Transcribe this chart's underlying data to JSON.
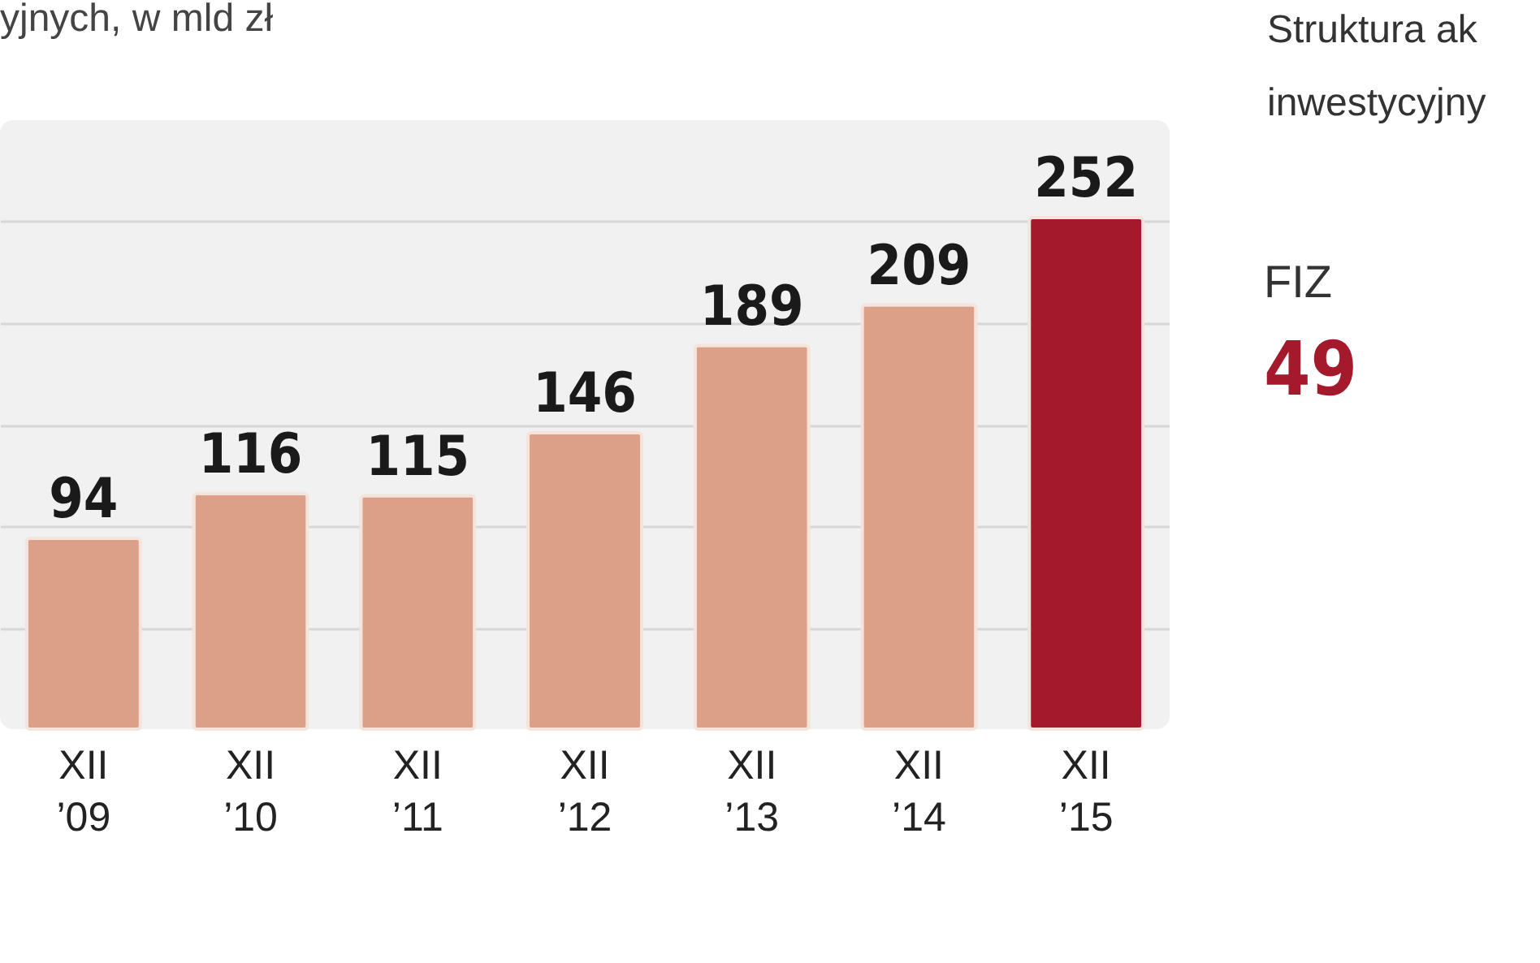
{
  "chart_data": {
    "type": "bar",
    "title": "yjnych, w mld zł",
    "categories": [
      "XII\n’09",
      "XII\n’10",
      "XII\n’11",
      "XII\n’12",
      "XII\n’13",
      "XII\n’14",
      "XII\n’15"
    ],
    "values": [
      94,
      116,
      115,
      146,
      189,
      209,
      252
    ],
    "colors": [
      "#dc9f88",
      "#dc9f88",
      "#dc9f88",
      "#dc9f88",
      "#dc9f88",
      "#dc9f88",
      "#a5192c"
    ],
    "data_labels": true,
    "relative": false,
    "ylim": [
      0,
      300
    ],
    "yticks": [
      {
        "value": 50,
        "label": null
      },
      {
        "value": 100,
        "label": null
      },
      {
        "value": 150,
        "label": null
      },
      {
        "value": 200,
        "label": null
      },
      {
        "value": 250,
        "label": null
      }
    ],
    "grid": "y",
    "tick_labels": "x",
    "annotations": [
      "Struktura ak",
      "inwestycyjny",
      "FIZ",
      "49"
    ]
  }
}
